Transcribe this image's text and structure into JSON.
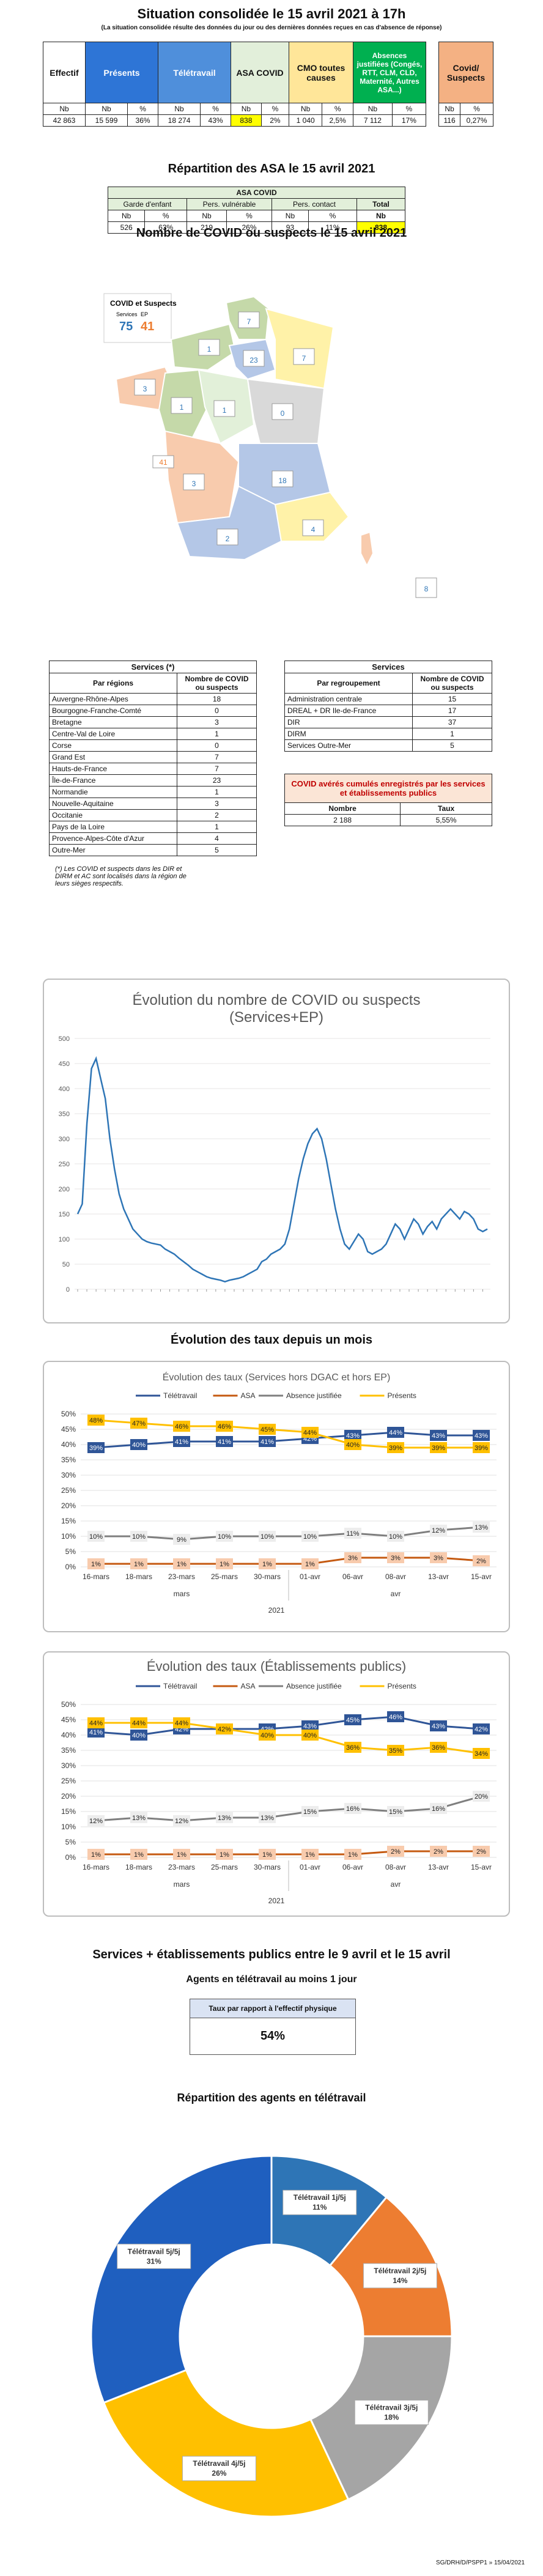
{
  "header": {
    "title": "Situation consolidée le 15 avril 2021 à 17h",
    "subtitle": "(La situation consolidée résulte des données du jour ou des dernières données reçues en cas d'absence de réponse)"
  },
  "summary": {
    "cols": {
      "effectif": "Effectif",
      "presents": "Présents",
      "teletravail": "Télétravail",
      "asa": "ASA COVID",
      "cmo": "CMO toutes causes",
      "absences": "Absences justifiées (Congés, RTT, CLM, CLD, Maternité, Autres ASA...)",
      "covid": "Covid/ Suspects"
    },
    "sub": {
      "nb": "Nb",
      "pct": "%"
    },
    "values": {
      "effectif": "42 863",
      "presents_nb": "15 599",
      "presents_pct": "36%",
      "teletravail_nb": "18 274",
      "teletravail_pct": "43%",
      "asa_nb": "838",
      "asa_pct": "2%",
      "cmo_nb": "1 040",
      "cmo_pct": "2,5%",
      "abs_nb": "7 112",
      "abs_pct": "17%",
      "covid_nb": "116",
      "covid_pct": "0,27%"
    },
    "colors": {
      "presents": "#2e75d6",
      "teletravail": "#4f8fdb",
      "asa": "#e2efda",
      "cmo": "#ffe699",
      "absences": "#00b050",
      "covid": "#f4b183"
    }
  },
  "asa_section": {
    "title": "Répartition des ASA le 15 avril 2021",
    "table_title": "ASA COVID",
    "cols": [
      "Garde d'enfant",
      "Pers. vulnérable",
      "Pers. contact",
      "Total"
    ],
    "sub": [
      "Nb",
      "%",
      "Nb",
      "%",
      "Nb",
      "%",
      "Nb"
    ],
    "values": [
      "526",
      "63%",
      "219",
      "26%",
      "93",
      "11%",
      "838"
    ]
  },
  "map_section": {
    "title": "Nombre de COVID ou suspects le 15 avril 2021",
    "legend_title": "COVID et Suspects",
    "legend_services": "Services",
    "legend_ep": "EP",
    "legend_services_value": "75",
    "legend_ep_value": "41",
    "regions": [
      {
        "name": "Hauts-de-France",
        "value": "7"
      },
      {
        "name": "Normandie",
        "value": "1"
      },
      {
        "name": "Île-de-France",
        "value": "23"
      },
      {
        "name": "Grand Est",
        "value": "7"
      },
      {
        "name": "Bretagne",
        "value": "3"
      },
      {
        "name": "Pays de la Loire",
        "value": "1"
      },
      {
        "name": "Centre-Val de Loire",
        "value": "1"
      },
      {
        "name": "Bourgogne-Franche-Comté",
        "value": "0"
      },
      {
        "name": "Nouvelle-Aquitaine",
        "value": "3"
      },
      {
        "name": "Auvergne-Rhône-Alpes",
        "value": "18"
      },
      {
        "name": "Occitanie",
        "value": "2"
      },
      {
        "name": "Provence-Alpes-Côte d'Azur",
        "value": "4"
      },
      {
        "name": "Corse",
        "value": "0"
      },
      {
        "name": "Services Outre-Mer",
        "value": "5"
      },
      {
        "name": "Outre-Mer",
        "value": "8"
      }
    ],
    "ep_box_value": "41"
  },
  "services_regions": {
    "title": "Services (*)",
    "col1": "Par régions",
    "col2": "Nombre de COVID ou suspects",
    "rows": [
      [
        "Auvergne-Rhône-Alpes",
        "18"
      ],
      [
        "Bourgogne-Franche-Comté",
        "0"
      ],
      [
        "Bretagne",
        "3"
      ],
      [
        "Centre-Val de Loire",
        "1"
      ],
      [
        "Corse",
        "0"
      ],
      [
        "Grand Est",
        "7"
      ],
      [
        "Hauts-de-France",
        "7"
      ],
      [
        "Île-de-France",
        "23"
      ],
      [
        "Normandie",
        "1"
      ],
      [
        "Nouvelle-Aquitaine",
        "3"
      ],
      [
        "Occitanie",
        "2"
      ],
      [
        "Pays de la Loire",
        "1"
      ],
      [
        "Provence-Alpes-Côte d'Azur",
        "4"
      ],
      [
        "Outre-Mer",
        "5"
      ]
    ],
    "note": "(*) Les COVID et suspects dans les DIR et DIRM et AC sont localisés dans la région de leurs sièges respectifs."
  },
  "services_groups": {
    "title": "Services",
    "col1": "Par regroupement",
    "col2": "Nombre de COVID ou suspects",
    "rows": [
      [
        "Administration centrale",
        "15"
      ],
      [
        "DREAL + DR Ile-de-France",
        "17"
      ],
      [
        "DIR",
        "37"
      ],
      [
        "DIRM",
        "1"
      ],
      [
        "Services Outre-Mer",
        "5"
      ]
    ]
  },
  "cumul": {
    "title": "COVID avérés cumulés enregistrés par les services et établissements publics",
    "col1": "Nombre",
    "col2": "Taux",
    "v1": "2 188",
    "v2": "5,55%"
  },
  "chart_data": [
    {
      "type": "line",
      "title": "Évolution du nombre de COVID ou suspects (Services+EP)",
      "ylim": [
        0,
        500
      ],
      "yticks": [
        0,
        50,
        100,
        150,
        200,
        250,
        300,
        350,
        400,
        450,
        500
      ],
      "series": [
        {
          "values": [
            150,
            170,
            330,
            440,
            460,
            420,
            380,
            300,
            240,
            190,
            160,
            140,
            120,
            110,
            100,
            95,
            92,
            90,
            88,
            80,
            75,
            70,
            62,
            55,
            48,
            40,
            35,
            30,
            25,
            22,
            20,
            18,
            15,
            18,
            20,
            22,
            25,
            30,
            35,
            40,
            55,
            60,
            70,
            75,
            80,
            90,
            120,
            170,
            220,
            260,
            290,
            310,
            320,
            300,
            260,
            210,
            160,
            120,
            90,
            80,
            95,
            110,
            100,
            75,
            70,
            75,
            80,
            90,
            110,
            130,
            120,
            100,
            120,
            140,
            130,
            110,
            125,
            135,
            120,
            140,
            150,
            160,
            150,
            140,
            155,
            150,
            140,
            120,
            115,
            120
          ]
        }
      ],
      "color": "#2e75b6"
    },
    {
      "type": "line",
      "title": "Évolution des taux (Services hors DGAC et hors EP)",
      "section_title": "Évolution des taux depuis un mois",
      "categories": [
        "16-mars",
        "18-mars",
        "23-mars",
        "25-mars",
        "30-mars",
        "01-avr",
        "06-avr",
        "08-avr",
        "13-avr",
        "15-avr"
      ],
      "group_labels": [
        "mars",
        "avr"
      ],
      "year": "2021",
      "ylim": [
        0,
        50
      ],
      "yticks": [
        "0%",
        "5%",
        "10%",
        "15%",
        "20%",
        "25%",
        "30%",
        "35%",
        "40%",
        "45%",
        "50%"
      ],
      "series": [
        {
          "name": "Télétravail",
          "color": "#2f5597",
          "values": [
            39,
            40,
            41,
            41,
            41,
            42,
            43,
            44,
            43,
            43
          ]
        },
        {
          "name": "ASA",
          "color": "#c55a11",
          "values": [
            1,
            1,
            1,
            1,
            1,
            1,
            3,
            3,
            3,
            2
          ]
        },
        {
          "name": "Absence justifiée",
          "color": "#7f7f7f",
          "values": [
            10,
            10,
            9,
            10,
            10,
            10,
            11,
            10,
            12,
            13
          ]
        },
        {
          "name": "Présents",
          "color": "#ffc000",
          "values": [
            48,
            47,
            46,
            46,
            45,
            44,
            40,
            39,
            39,
            39
          ]
        }
      ]
    },
    {
      "type": "line",
      "title": "Évolution des taux (Établissements publics)",
      "categories": [
        "16-mars",
        "18-mars",
        "23-mars",
        "25-mars",
        "30-mars",
        "01-avr",
        "06-avr",
        "08-avr",
        "13-avr",
        "15-avr"
      ],
      "group_labels": [
        "mars",
        "avr"
      ],
      "year": "2021",
      "ylim": [
        0,
        50
      ],
      "yticks": [
        "0%",
        "5%",
        "10%",
        "15%",
        "20%",
        "25%",
        "30%",
        "35%",
        "40%",
        "45%",
        "50%"
      ],
      "series": [
        {
          "name": "Télétravail",
          "color": "#2f5597",
          "values": [
            41,
            40,
            42,
            42,
            42,
            43,
            45,
            46,
            43,
            42
          ]
        },
        {
          "name": "ASA",
          "color": "#c55a11",
          "values": [
            1,
            1,
            1,
            1,
            1,
            1,
            1,
            2,
            2,
            2
          ]
        },
        {
          "name": "Absence justifiée",
          "color": "#7f7f7f",
          "values": [
            12,
            13,
            12,
            13,
            13,
            15,
            16,
            15,
            16,
            20
          ]
        },
        {
          "name": "Présents",
          "color": "#ffc000",
          "values": [
            44,
            44,
            44,
            42,
            40,
            40,
            36,
            35,
            36,
            34
          ]
        }
      ]
    },
    {
      "type": "pie",
      "title": "Répartition des agents en télétravail",
      "slices": [
        {
          "name": "Télétravail 1j/5j",
          "value": 11,
          "color": "#2e75b6"
        },
        {
          "name": "Télétravail 2j/5j",
          "value": 14,
          "color": "#ed7d31"
        },
        {
          "name": "Télétravail 3j/5j",
          "value": 18,
          "color": "#a5a5a5"
        },
        {
          "name": "Télétravail 4j/5j",
          "value": 26,
          "color": "#ffc000"
        },
        {
          "name": "Télétravail 5j/5j",
          "value": 31,
          "color": "#1f5fbf"
        }
      ],
      "labels": [
        "Télétravail 1j/5j\n11%",
        "Télétravail 2j/5j\n14%",
        "Télétravail 3j/5j\n18%",
        "Télétravail 4j/5j\n26%",
        "Télétravail 5j/5j\n31%"
      ]
    }
  ],
  "telework": {
    "section_title": "Services + établissements publics entre le 9 avril et le 15 avril",
    "subtitle": "Agents en télétravail au moins 1 jour",
    "box_title": "Taux par rapport à l'effectif physique",
    "box_value": "54%"
  },
  "footer": "SG/DRH/D/PSPP1 » 15/04/2021"
}
